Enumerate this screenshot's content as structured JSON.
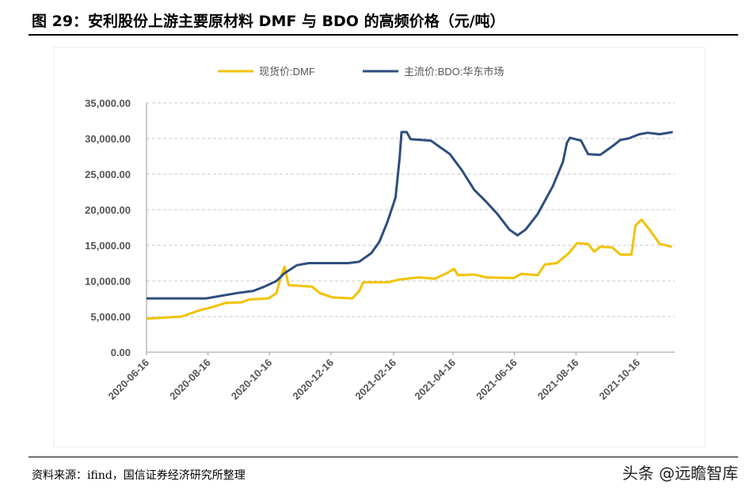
{
  "title": "图 29：安利股份上游主要原材料 DMF 与 BDO 的高频价格（元/吨）",
  "source": "资料来源：ifind，国信证券经济研究所整理",
  "watermark": "头条 @远瞻智库",
  "chart_data": {
    "type": "line",
    "title": "",
    "xlabel": "",
    "ylabel": "",
    "ylim": [
      0,
      35000
    ],
    "yticks": [
      "0.00",
      "5,000.00",
      "10,000.00",
      "15,000.00",
      "20,000.00",
      "25,000.00",
      "30,000.00",
      "35,000.00"
    ],
    "xlim": [
      "2020-06-16",
      "2021-11-22"
    ],
    "xticks": [
      "2020-06-16",
      "2020-08-16",
      "2020-10-16",
      "2020-12-16",
      "2021-02-16",
      "2021-04-16",
      "2021-06-16",
      "2021-08-16",
      "2021-10-16"
    ],
    "grid": "horizontal dashed",
    "legend": "top",
    "series": [
      {
        "name": "现货价:DMF",
        "color": "#F2C200",
        "points": [
          [
            "2020-06-16",
            4700
          ],
          [
            "2020-07-21",
            5000
          ],
          [
            "2020-08-06",
            5800
          ],
          [
            "2020-08-22",
            6400
          ],
          [
            "2020-09-02",
            6900
          ],
          [
            "2020-09-18",
            7000
          ],
          [
            "2020-09-26",
            7400
          ],
          [
            "2020-10-15",
            7550
          ],
          [
            "2020-10-23",
            8300
          ],
          [
            "2020-10-27",
            10500
          ],
          [
            "2020-10-31",
            12000
          ],
          [
            "2020-11-04",
            9400
          ],
          [
            "2020-11-27",
            9200
          ],
          [
            "2020-12-05",
            8300
          ],
          [
            "2020-12-17",
            7700
          ],
          [
            "2021-01-06",
            7550
          ],
          [
            "2021-01-13",
            8600
          ],
          [
            "2021-01-17",
            9800
          ],
          [
            "2021-02-10",
            9800
          ],
          [
            "2021-02-22",
            10200
          ],
          [
            "2021-03-13",
            10500
          ],
          [
            "2021-03-29",
            10300
          ],
          [
            "2021-04-10",
            11100
          ],
          [
            "2021-04-17",
            11700
          ],
          [
            "2021-04-21",
            10800
          ],
          [
            "2021-05-07",
            10900
          ],
          [
            "2021-05-19",
            10500
          ],
          [
            "2021-06-15",
            10400
          ],
          [
            "2021-06-23",
            11000
          ],
          [
            "2021-07-09",
            10800
          ],
          [
            "2021-07-16",
            12300
          ],
          [
            "2021-07-28",
            12500
          ],
          [
            "2021-08-09",
            13900
          ],
          [
            "2021-08-17",
            15300
          ],
          [
            "2021-08-28",
            15200
          ],
          [
            "2021-09-03",
            14100
          ],
          [
            "2021-09-09",
            14800
          ],
          [
            "2021-09-21",
            14700
          ],
          [
            "2021-09-29",
            13700
          ],
          [
            "2021-10-10",
            13700
          ],
          [
            "2021-10-14",
            17800
          ],
          [
            "2021-10-20",
            18600
          ],
          [
            "2021-10-28",
            17200
          ],
          [
            "2021-11-07",
            15200
          ],
          [
            "2021-11-19",
            14800
          ]
        ]
      },
      {
        "name": "主流价:BDO:华东市场",
        "color": "#2F4E7E",
        "points": [
          [
            "2020-06-16",
            7550
          ],
          [
            "2020-08-14",
            7550
          ],
          [
            "2020-09-14",
            8300
          ],
          [
            "2020-09-30",
            8600
          ],
          [
            "2020-10-11",
            9200
          ],
          [
            "2020-10-23",
            10000
          ],
          [
            "2020-10-31",
            11100
          ],
          [
            "2020-11-12",
            12200
          ],
          [
            "2020-11-24",
            12500
          ],
          [
            "2021-01-02",
            12500
          ],
          [
            "2021-01-13",
            12700
          ],
          [
            "2021-01-25",
            13900
          ],
          [
            "2021-02-02",
            15500
          ],
          [
            "2021-02-10",
            18300
          ],
          [
            "2021-02-18",
            21700
          ],
          [
            "2021-02-22",
            27200
          ],
          [
            "2021-02-24",
            30900
          ],
          [
            "2021-03-01",
            30900
          ],
          [
            "2021-03-05",
            29900
          ],
          [
            "2021-03-25",
            29700
          ],
          [
            "2021-04-02",
            28900
          ],
          [
            "2021-04-13",
            27800
          ],
          [
            "2021-04-25",
            25500
          ],
          [
            "2021-05-07",
            22800
          ],
          [
            "2021-05-19",
            21100
          ],
          [
            "2021-05-30",
            19400
          ],
          [
            "2021-06-11",
            17200
          ],
          [
            "2021-06-19",
            16400
          ],
          [
            "2021-06-27",
            17200
          ],
          [
            "2021-07-09",
            19400
          ],
          [
            "2021-07-24",
            23300
          ],
          [
            "2021-08-03",
            26700
          ],
          [
            "2021-08-07",
            29400
          ],
          [
            "2021-08-10",
            30100
          ],
          [
            "2021-08-21",
            29700
          ],
          [
            "2021-08-28",
            27800
          ],
          [
            "2021-09-09",
            27700
          ],
          [
            "2021-09-21",
            28900
          ],
          [
            "2021-09-29",
            29800
          ],
          [
            "2021-10-07",
            30000
          ],
          [
            "2021-10-18",
            30600
          ],
          [
            "2021-10-26",
            30800
          ],
          [
            "2021-11-07",
            30600
          ],
          [
            "2021-11-20",
            30900
          ]
        ]
      }
    ]
  }
}
